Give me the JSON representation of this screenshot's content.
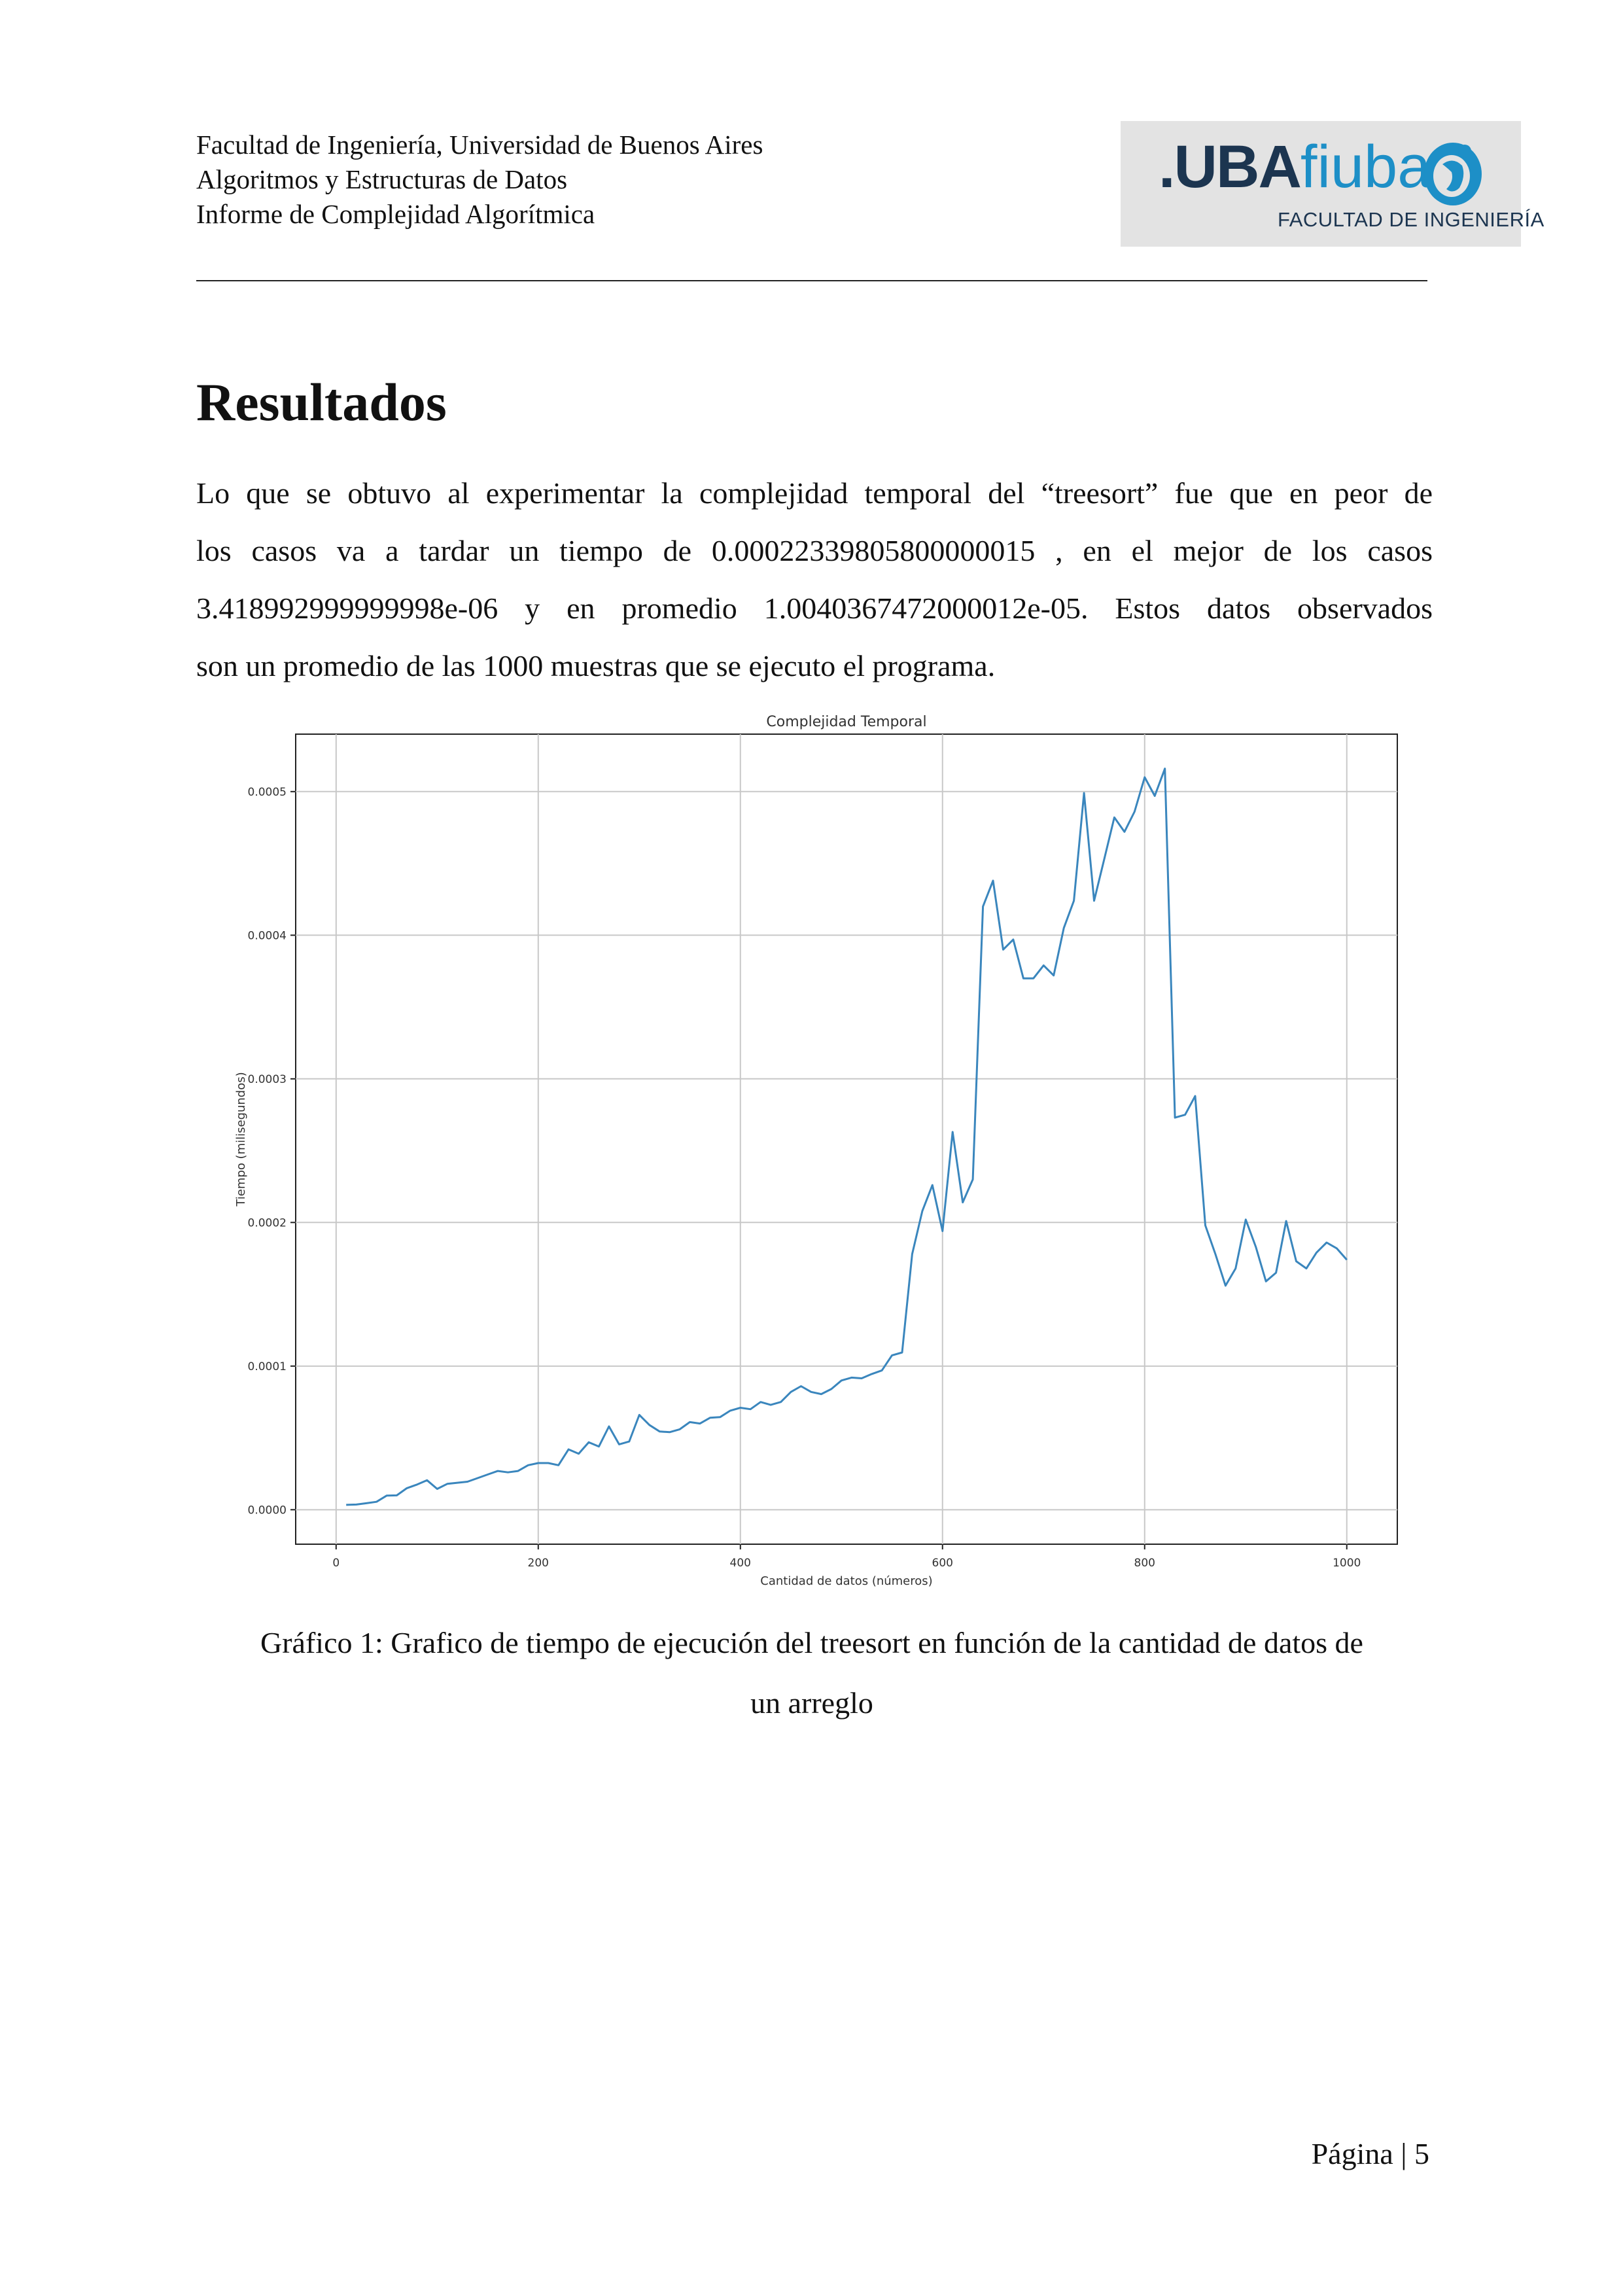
{
  "header": {
    "line1": "Facultad de Ingeniería, Universidad de Buenos Aires",
    "line2": "Algoritmos y Estructuras de Datos",
    "line3": "Informe de Complejidad Algorítmica",
    "logo_uba": ".UBA",
    "logo_fiuba": "fiuba",
    "logo_subtitle": "FACULTAD DE INGENIERÍA"
  },
  "section_title": "Resultados",
  "paragraph_lines": [
    "Lo que se obtuvo al experimentar la complejidad temporal del “treesort” fue que en peor de",
    "los casos va a tardar un tiempo de 0.00022339805800000015 , en el mejor de los casos",
    "3.418992999999998e-06 y en promedio 1.0040367472000012e-05. Estos datos observados",
    "son un promedio de las 1000 muestras que se ejecuto el programa."
  ],
  "caption_line1": "Gráfico 1: Grafico de tiempo de ejecución del treesort en función de la cantidad de datos de",
  "caption_line2": "un arreglo",
  "footer": "Página | 5",
  "colors": {
    "line": "#3a86bd",
    "grid": "#c8c8c8",
    "logo_dark": "#1c3550",
    "logo_blue": "#1d8fc7"
  },
  "chart_data": {
    "type": "line",
    "title": "Complejidad Temporal",
    "xlabel": "Cantidad de datos (números)",
    "ylabel": "Tiempo (milisegundos)",
    "xlim": [
      -40,
      1050
    ],
    "ylim": [
      -2.4e-05,
      0.00054
    ],
    "x_ticks": [
      0,
      200,
      400,
      600,
      800,
      1000
    ],
    "x_tick_labels": [
      "0",
      "200",
      "400",
      "600",
      "800",
      "1000"
    ],
    "y_ticks": [
      0,
      0.0001,
      0.0002,
      0.0003,
      0.0004,
      0.0005
    ],
    "y_tick_labels": [
      "0.0000",
      "0.0001",
      "0.0002",
      "0.0003",
      "0.0004",
      "0.0005"
    ],
    "grid": true,
    "series": [
      {
        "x": [
          10,
          20,
          30,
          40,
          50,
          60,
          70,
          80,
          90,
          100,
          110,
          120,
          130,
          140,
          150,
          160,
          170,
          180,
          190,
          200,
          210,
          220,
          230,
          240,
          250,
          260,
          270,
          280,
          290,
          300,
          310,
          320,
          330,
          340,
          350,
          360,
          370,
          380,
          390,
          400,
          410,
          420,
          430,
          440,
          450,
          460,
          470,
          480,
          490,
          500,
          510,
          520,
          530,
          540,
          550,
          560,
          570,
          580,
          590,
          600,
          610,
          620,
          630,
          640,
          650,
          660,
          670,
          680,
          690,
          700,
          710,
          720,
          730,
          740,
          750,
          760,
          770,
          780,
          790,
          800,
          810,
          820,
          830,
          840,
          850,
          860,
          870,
          880,
          890,
          900,
          910,
          920,
          930,
          940,
          950,
          960,
          970,
          980,
          990,
          1000
        ],
        "y": [
          3.4e-06,
          3.6e-06,
          4.5e-06,
          5.5e-06,
          9.8e-06,
          1e-05,
          1.5e-05,
          1.75e-05,
          2.05e-05,
          1.45e-05,
          1.8e-05,
          1.88e-05,
          1.95e-05,
          2.2e-05,
          2.45e-05,
          2.7e-05,
          2.6e-05,
          2.7e-05,
          3.1e-05,
          3.25e-05,
          3.25e-05,
          3.1e-05,
          4.2e-05,
          3.9e-05,
          4.7e-05,
          4.4e-05,
          5.8e-05,
          4.55e-05,
          4.75e-05,
          6.6e-05,
          5.9e-05,
          5.45e-05,
          5.4e-05,
          5.6e-05,
          6.1e-05,
          6e-05,
          6.4e-05,
          6.45e-05,
          6.9e-05,
          7.1e-05,
          7e-05,
          7.5e-05,
          7.3e-05,
          7.5e-05,
          8.2e-05,
          8.6e-05,
          8.2e-05,
          8.05e-05,
          8.4e-05,
          9e-05,
          9.2e-05,
          9.15e-05,
          9.45e-05,
          9.7e-05,
          0.0001075,
          0.0001095,
          0.000178,
          0.000208,
          0.000226,
          0.000194,
          0.000263,
          0.000214,
          0.00023,
          0.00042,
          0.000438,
          0.00039,
          0.000397,
          0.00037,
          0.00037,
          0.000379,
          0.000372,
          0.000405,
          0.000424,
          0.000499,
          0.000424,
          0.000453,
          0.000482,
          0.000472,
          0.000486,
          0.00051,
          0.000497,
          0.000516,
          0.000273,
          0.000275,
          0.000288,
          0.000198,
          0.000178,
          0.000156,
          0.000168,
          0.000202,
          0.000183,
          0.000159,
          0.000165,
          0.000201,
          0.000173,
          0.000168,
          0.000179,
          0.000186,
          0.000182,
          0.000174
        ]
      }
    ]
  }
}
